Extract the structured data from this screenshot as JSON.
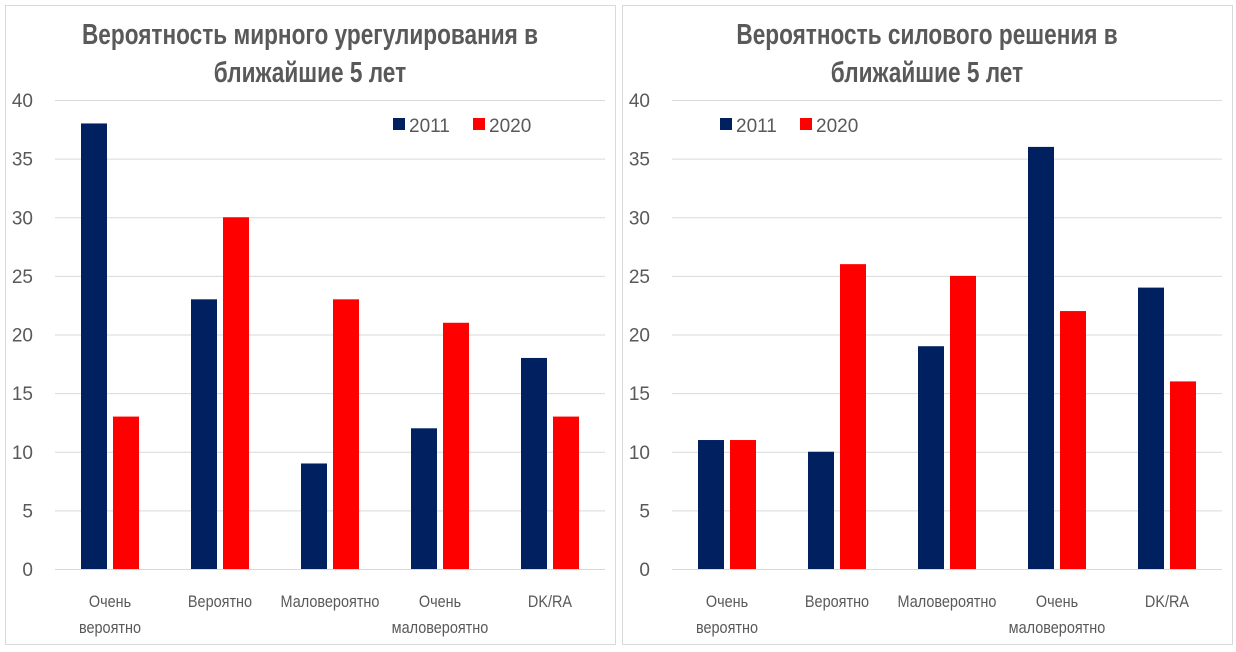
{
  "colors": {
    "2011": "#002060",
    "2020": "#ff0000",
    "grid": "#d9d9d9",
    "border": "#d9d9d9"
  },
  "chart_data": [
    {
      "type": "bar",
      "title": [
        "Вероятность мирного урегулирования в",
        "ближайшие 5 лет"
      ],
      "categories": [
        [
          "Очень",
          "вероятно"
        ],
        [
          "Вероятно"
        ],
        [
          "Маловероятно"
        ],
        [
          "Очень",
          "маловероятно"
        ],
        [
          "DK/RA"
        ]
      ],
      "series": [
        {
          "name": "2011",
          "values": [
            38,
            23,
            9,
            12,
            18
          ]
        },
        {
          "name": "2020",
          "values": [
            13,
            30,
            23,
            21,
            13
          ]
        }
      ],
      "ylim": [
        0,
        40
      ],
      "yticks": [
        0,
        5,
        10,
        15,
        20,
        25,
        30,
        35,
        40
      ],
      "grid": true,
      "legend": "top-right"
    },
    {
      "type": "bar",
      "title": [
        "Вероятность силового решения в",
        "ближайшие 5 лет"
      ],
      "categories": [
        [
          "Очень",
          "вероятно"
        ],
        [
          "Вероятно"
        ],
        [
          "Маловероятно"
        ],
        [
          "Очень",
          "маловероятно"
        ],
        [
          "DK/RA"
        ]
      ],
      "series": [
        {
          "name": "2011",
          "values": [
            11,
            10,
            19,
            36,
            24
          ]
        },
        {
          "name": "2020",
          "values": [
            11,
            26,
            25,
            22,
            16
          ]
        }
      ],
      "ylim": [
        0,
        40
      ],
      "yticks": [
        0,
        5,
        10,
        15,
        20,
        25,
        30,
        35,
        40
      ],
      "grid": true,
      "legend": "top-left"
    }
  ]
}
